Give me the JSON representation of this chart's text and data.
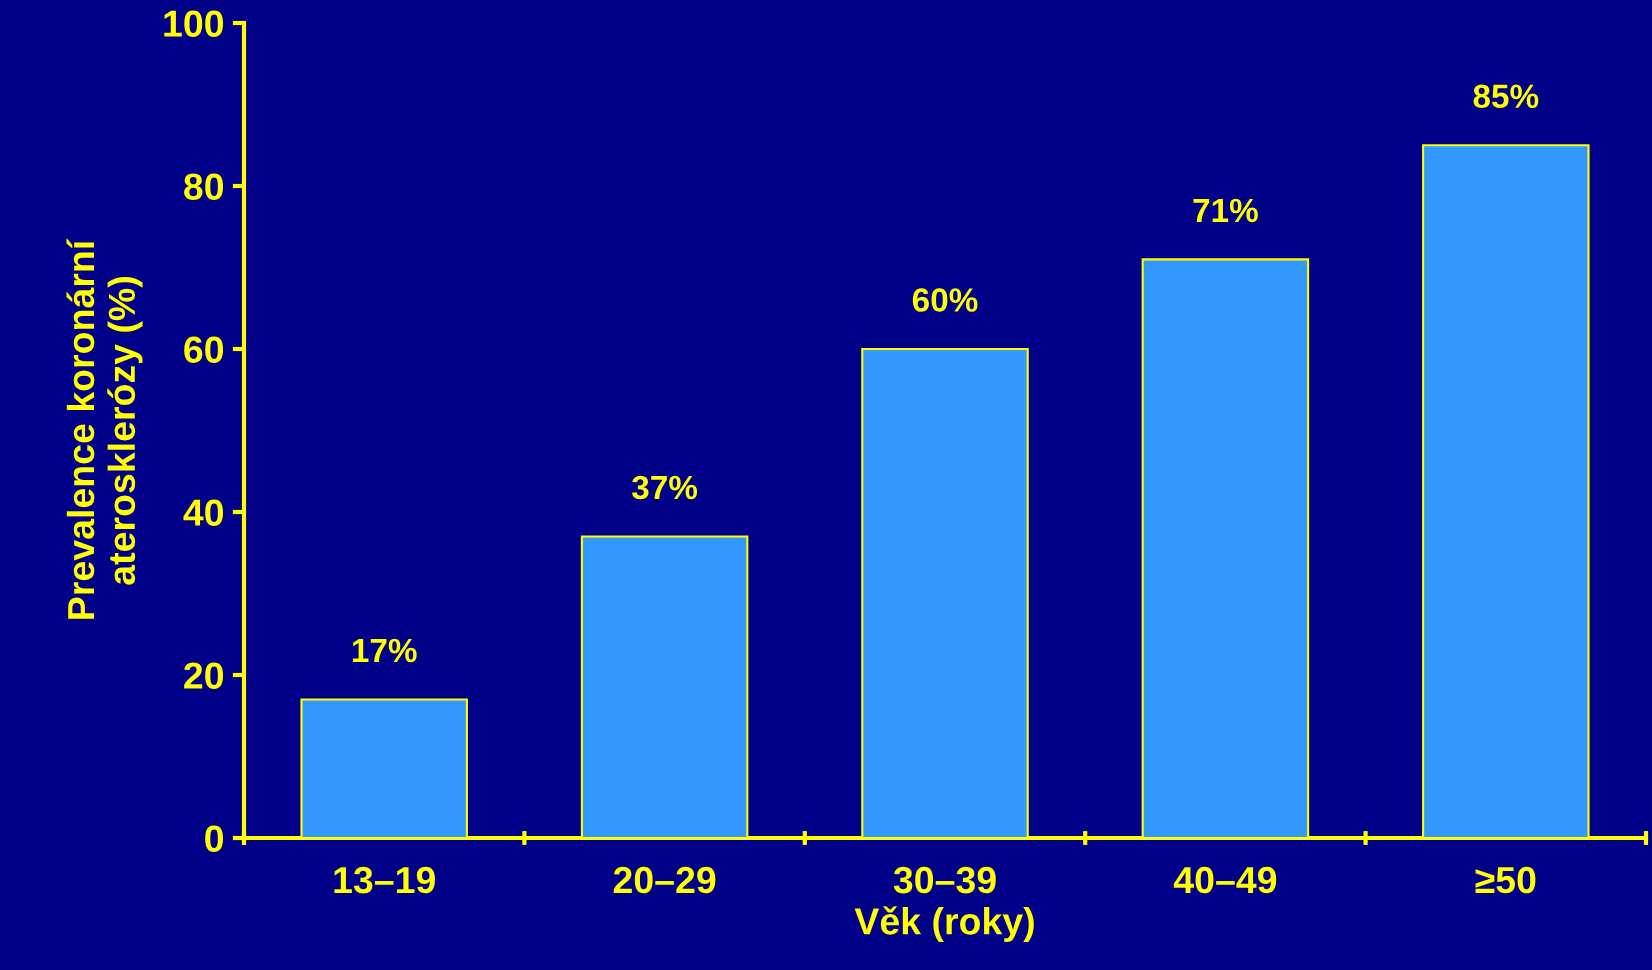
{
  "chart_data": {
    "type": "bar",
    "xlabel": "Věk (roky)",
    "ylabel": "Prevalence koronární\naterosklerózy (%)",
    "categories": [
      "13–19",
      "20–29",
      "30–39",
      "40–49",
      "≥50"
    ],
    "values": [
      17,
      37,
      60,
      71,
      85
    ],
    "value_labels": [
      "17%",
      "37%",
      "60%",
      "71%",
      "85%"
    ],
    "color": "#3399ff",
    "ylim": [
      0,
      100
    ],
    "yticks": [
      0,
      20,
      40,
      60,
      80,
      100
    ],
    "grid": false
  }
}
